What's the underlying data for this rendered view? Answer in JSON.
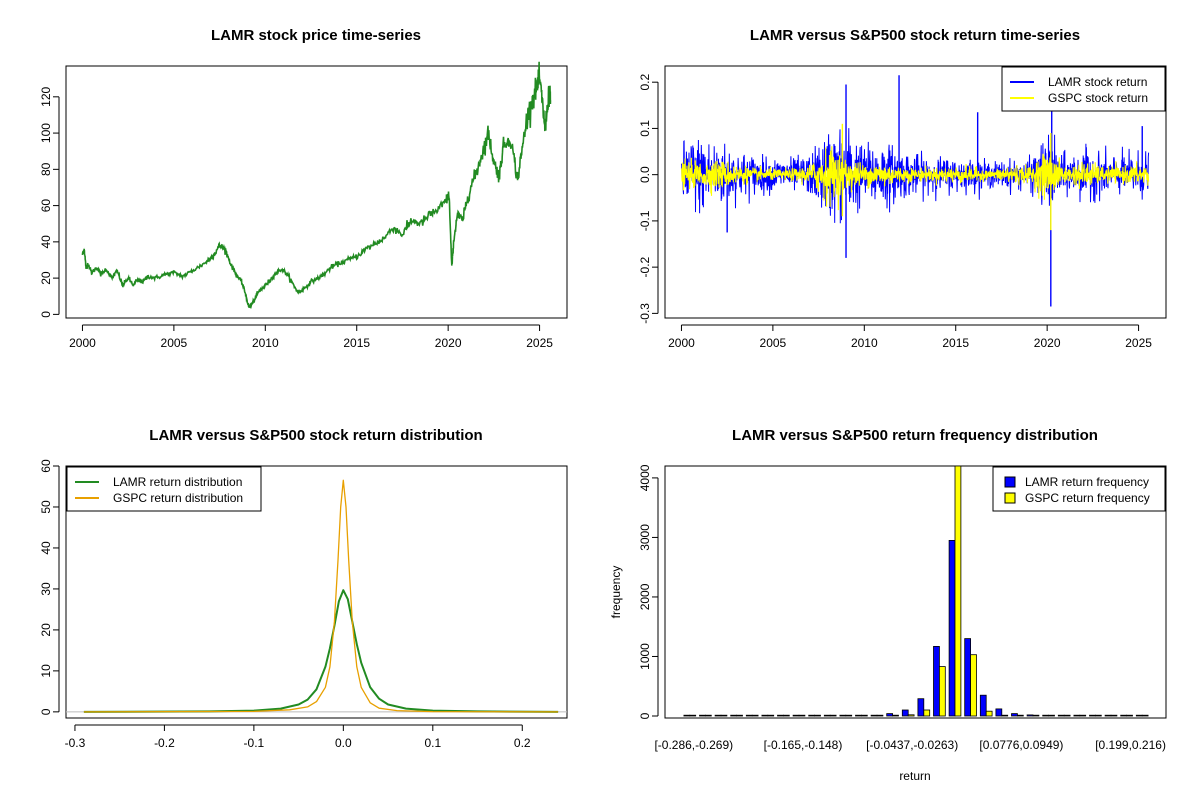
{
  "chart_data": [
    {
      "type": "line",
      "title": "LAMR stock price time-series",
      "xlabel": "",
      "ylabel": "",
      "xlim": [
        1999.1,
        2026.5
      ],
      "ylim": [
        -2,
        137
      ],
      "x_ticks": [
        2000,
        2005,
        2010,
        2015,
        2020,
        2025
      ],
      "x_tick_labels": [
        "2000",
        "2005",
        "2010",
        "2015",
        "2020",
        "2025"
      ],
      "y_ticks": [
        0,
        20,
        40,
        60,
        80,
        100,
        120
      ],
      "y_tick_labels": [
        "0",
        "20",
        "40",
        "60",
        "80",
        "100",
        "120"
      ],
      "grid": false,
      "series": [
        {
          "color": "#228B22",
          "x": [
            2000.0,
            2000.1,
            2000.2,
            2000.3,
            2000.5,
            2000.8,
            2001.0,
            2001.3,
            2001.6,
            2001.9,
            2002.2,
            2002.5,
            2002.8,
            2003.0,
            2003.3,
            2003.6,
            2004.0,
            2004.5,
            2005.0,
            2005.5,
            2006.0,
            2006.5,
            2006.9,
            2007.2,
            2007.5,
            2007.8,
            2008.1,
            2008.4,
            2008.7,
            2008.9,
            2009.1,
            2009.3,
            2009.6,
            2009.9,
            2010.2,
            2010.5,
            2010.9,
            2011.2,
            2011.5,
            2011.8,
            2012.1,
            2012.5,
            2012.9,
            2013.2,
            2013.6,
            2014.0,
            2014.5,
            2015.0,
            2015.5,
            2016.0,
            2016.5,
            2017.0,
            2017.5,
            2018.0,
            2018.5,
            2019.0,
            2019.5,
            2019.9,
            2020.05,
            2020.2,
            2020.3,
            2020.5,
            2020.8,
            2021.0,
            2021.3,
            2021.6,
            2021.9,
            2022.2,
            2022.5,
            2022.8,
            2023.0,
            2023.4,
            2023.8,
            2024.0,
            2024.3,
            2024.6,
            2024.8,
            2025.0,
            2025.2,
            2025.3,
            2025.5,
            2025.6
          ],
          "y": [
            33,
            36,
            25,
            28,
            23,
            26,
            22,
            25,
            20,
            24,
            16,
            20,
            16,
            19,
            18,
            21,
            20,
            22,
            23,
            21,
            24,
            27,
            30,
            33,
            38,
            36,
            28,
            22,
            18,
            12,
            4,
            6,
            12,
            15,
            18,
            22,
            25,
            22,
            17,
            12,
            14,
            18,
            20,
            22,
            26,
            28,
            30,
            32,
            36,
            39,
            42,
            48,
            44,
            52,
            50,
            55,
            58,
            63,
            66,
            26,
            40,
            55,
            52,
            62,
            72,
            80,
            90,
            100,
            84,
            76,
            92,
            98,
            74,
            88,
            108,
            118,
            124,
            130,
            112,
            102,
            122,
            118
          ]
        }
      ]
    },
    {
      "type": "line",
      "title": "LAMR versus S&P500 stock return time-series",
      "xlabel": "",
      "ylabel": "",
      "xlim": [
        1999.1,
        2026.5
      ],
      "ylim": [
        -0.31,
        0.235
      ],
      "x_ticks": [
        2000,
        2005,
        2010,
        2015,
        2020,
        2025
      ],
      "x_tick_labels": [
        "2000",
        "2005",
        "2010",
        "2015",
        "2020",
        "2025"
      ],
      "y_ticks": [
        -0.3,
        -0.2,
        -0.1,
        0.0,
        0.1,
        0.2
      ],
      "y_tick_labels": [
        "-0.3",
        "-0.2",
        "-0.1",
        "0.0",
        "0.1",
        "0.2"
      ],
      "grid": false,
      "legend_position": "top-right",
      "series": [
        {
          "name": "LAMR stock return",
          "color": "#0000FF",
          "volatility_x": [
            2000,
            2001,
            2002,
            2003,
            2004,
            2005,
            2006,
            2007,
            2008,
            2009,
            2010,
            2011,
            2012,
            2013,
            2014,
            2015,
            2016,
            2017,
            2018,
            2019,
            2020,
            2021,
            2022,
            2023,
            2024,
            2025.5
          ],
          "volatility_y": [
            0.035,
            0.04,
            0.035,
            0.025,
            0.02,
            0.017,
            0.017,
            0.02,
            0.045,
            0.05,
            0.03,
            0.035,
            0.025,
            0.02,
            0.018,
            0.017,
            0.015,
            0.013,
            0.015,
            0.015,
            0.04,
            0.02,
            0.025,
            0.022,
            0.02,
            0.025
          ],
          "extremes": [
            {
              "x": 2020.2,
              "y": -0.285
            },
            {
              "x": 2020.25,
              "y": 0.16
            },
            {
              "x": 2011.9,
              "y": 0.215
            },
            {
              "x": 2009.0,
              "y": 0.195
            },
            {
              "x": 2009.0,
              "y": -0.18
            },
            {
              "x": 2002.5,
              "y": -0.125
            },
            {
              "x": 2016.2,
              "y": 0.135
            },
            {
              "x": 2025.2,
              "y": 0.105
            }
          ]
        },
        {
          "name": "GSPC stock return",
          "color": "#FFFF00",
          "volatility_x": [
            2000,
            2001,
            2002,
            2003,
            2004,
            2005,
            2006,
            2007,
            2008,
            2009,
            2010,
            2011,
            2012,
            2013,
            2014,
            2015,
            2016,
            2017,
            2018,
            2019,
            2020,
            2021,
            2022,
            2023,
            2024,
            2025.5
          ],
          "volatility_y": [
            0.014,
            0.014,
            0.016,
            0.011,
            0.007,
            0.006,
            0.006,
            0.01,
            0.03,
            0.018,
            0.011,
            0.014,
            0.008,
            0.007,
            0.007,
            0.009,
            0.008,
            0.004,
            0.011,
            0.008,
            0.025,
            0.008,
            0.014,
            0.009,
            0.008,
            0.012
          ],
          "extremes": [
            {
              "x": 2008.8,
              "y": 0.11
            },
            {
              "x": 2008.8,
              "y": -0.09
            },
            {
              "x": 2020.2,
              "y": 0.09
            },
            {
              "x": 2020.2,
              "y": -0.12
            }
          ]
        }
      ]
    },
    {
      "type": "line",
      "title": "LAMR versus S&P500 stock return distribution",
      "xlabel": "",
      "ylabel": "",
      "xlim": [
        -0.31,
        0.25
      ],
      "ylim": [
        -1.5,
        60
      ],
      "x_ticks": [
        -0.3,
        -0.2,
        -0.1,
        0.0,
        0.1,
        0.2
      ],
      "x_tick_labels": [
        "-0.3",
        "-0.2",
        "-0.1",
        "0.0",
        "0.1",
        "0.2"
      ],
      "y_ticks": [
        0,
        10,
        20,
        30,
        40,
        50,
        60
      ],
      "y_tick_labels": [
        "0",
        "10",
        "20",
        "30",
        "40",
        "50",
        "60"
      ],
      "grid": false,
      "legend_position": "top-left",
      "series": [
        {
          "name": "LAMR return distribution",
          "color": "#228B22",
          "x": [
            -0.29,
            -0.15,
            -0.1,
            -0.07,
            -0.05,
            -0.04,
            -0.03,
            -0.02,
            -0.015,
            -0.01,
            -0.005,
            0.0,
            0.005,
            0.01,
            0.015,
            0.02,
            0.03,
            0.04,
            0.05,
            0.07,
            0.1,
            0.15,
            0.24
          ],
          "y": [
            0,
            0.1,
            0.3,
            0.8,
            1.8,
            3.0,
            5.5,
            11.0,
            15.5,
            21.0,
            27.0,
            29.7,
            27.5,
            22.0,
            16.5,
            12.0,
            6.0,
            3.2,
            1.8,
            0.8,
            0.3,
            0.1,
            0
          ]
        },
        {
          "name": "GSPC return distribution",
          "color": "#E8A000",
          "x": [
            -0.29,
            -0.1,
            -0.06,
            -0.04,
            -0.03,
            -0.02,
            -0.015,
            -0.01,
            -0.006,
            -0.003,
            0.0,
            0.003,
            0.006,
            0.01,
            0.015,
            0.02,
            0.03,
            0.04,
            0.06,
            0.1,
            0.24
          ],
          "y": [
            0,
            0.1,
            0.5,
            1.2,
            2.5,
            6.0,
            11.0,
            22.0,
            37.0,
            50.0,
            56.5,
            50.0,
            37.0,
            22.0,
            11.0,
            6.0,
            2.2,
            0.9,
            0.3,
            0.05,
            0
          ]
        }
      ]
    },
    {
      "type": "bar",
      "title": "LAMR versus S&P500 return frequency distribution",
      "xlabel": "return",
      "ylabel": "frequency",
      "ylim": [
        0,
        4200
      ],
      "y_ticks": [
        0,
        1000,
        2000,
        3000,
        4000
      ],
      "y_tick_labels": [
        "0",
        "1000",
        "2000",
        "3000",
        "4000"
      ],
      "x_tick_labels": [
        {
          "index": 0,
          "label": "[-0.286,-0.269)"
        },
        {
          "index": 7,
          "label": "[-0.165,-0.148)"
        },
        {
          "index": 14,
          "label": "[-0.0437,-0.0263)"
        },
        {
          "index": 21,
          "label": "[0.0776,0.0949)"
        },
        {
          "index": 28,
          "label": "[0.199,0.216)"
        }
      ],
      "legend_position": "top-right",
      "categories_count": 30,
      "series": [
        {
          "name": "LAMR return frequency",
          "color": "#0000FF",
          "values": [
            1,
            0,
            0,
            0,
            0,
            0,
            0,
            0,
            1,
            2,
            3,
            5,
            12,
            40,
            100,
            290,
            1170,
            2950,
            1300,
            350,
            120,
            40,
            18,
            8,
            6,
            4,
            2,
            1,
            1,
            1
          ]
        },
        {
          "name": "GSPC return frequency",
          "color": "#FFFF00",
          "values": [
            0,
            0,
            0,
            0,
            0,
            0,
            0,
            0,
            0,
            0,
            0,
            1,
            2,
            6,
            20,
            100,
            830,
            4350,
            1030,
            80,
            10,
            3,
            1,
            0,
            0,
            0,
            0,
            0,
            0,
            0
          ]
        }
      ]
    }
  ]
}
